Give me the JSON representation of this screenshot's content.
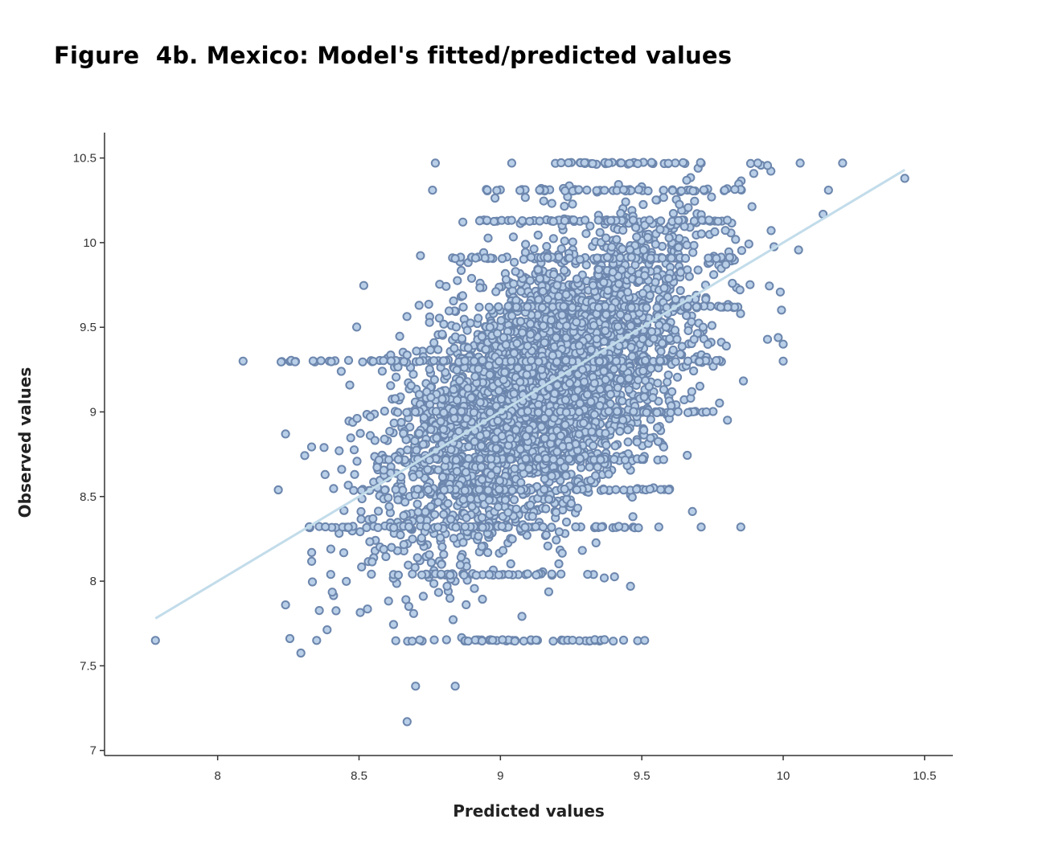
{
  "figure_title": "Figure  4b. Mexico: Model's fitted/predicted values",
  "colors": {
    "point_fill": "#b9cfe8",
    "point_stroke": "#6c86ad",
    "fit_line": "#c2dcea",
    "axis": "#333333"
  },
  "chart_data": {
    "type": "scatter",
    "title": "Figure  4b. Mexico: Model's fitted/predicted values",
    "xlabel": "Predicted values",
    "ylabel": "Observed values",
    "xlim": [
      7.6,
      10.6
    ],
    "ylim": [
      6.97,
      10.65
    ],
    "x_ticks": [
      8,
      8.5,
      9,
      9.5,
      10,
      10.5
    ],
    "x_tick_labels": [
      "8",
      "8.5",
      "9",
      "9.5",
      "10",
      "10.5"
    ],
    "y_ticks": [
      7,
      7.5,
      8,
      8.5,
      9,
      9.5,
      10,
      10.5
    ],
    "y_tick_labels": [
      "7",
      "7.5",
      "8",
      "8.5",
      "9",
      "9.5",
      "10",
      "10.5"
    ],
    "grid": false,
    "legend": "none",
    "fit_line": {
      "x": [
        7.78,
        10.43
      ],
      "y": [
        7.78,
        10.43
      ]
    },
    "point_count_description": "about 5000 observations clustered around predicted 8.6-9.8",
    "sample_points": [
      [
        7.78,
        7.65
      ],
      [
        8.09,
        9.3
      ],
      [
        8.24,
        8.87
      ],
      [
        8.24,
        7.86
      ],
      [
        8.35,
        7.65
      ],
      [
        8.38,
        8.63
      ],
      [
        8.4,
        8.04
      ],
      [
        8.67,
        7.17
      ],
      [
        8.7,
        7.38
      ],
      [
        8.84,
        7.38
      ],
      [
        8.77,
        10.47
      ],
      [
        8.76,
        10.31
      ],
      [
        9.04,
        10.47
      ],
      [
        9.91,
        10.47
      ],
      [
        10.06,
        10.47
      ],
      [
        10.21,
        10.47
      ],
      [
        10.43,
        10.38
      ],
      [
        10.16,
        10.31
      ],
      [
        10.0,
        9.4
      ],
      [
        10.0,
        9.3
      ],
      [
        9.85,
        8.32
      ],
      [
        9.71,
        8.32
      ],
      [
        9.56,
        8.32
      ],
      [
        9.51,
        7.65
      ],
      [
        9.46,
        7.97
      ]
    ],
    "horizontal_bands": [
      {
        "y": 10.47,
        "x_from": 9.15,
        "x_to": 9.75
      },
      {
        "y": 10.31,
        "x_from": 8.92,
        "x_to": 9.9
      },
      {
        "y": 10.13,
        "x_from": 8.92,
        "x_to": 9.85
      },
      {
        "y": 9.91,
        "x_from": 8.82,
        "x_to": 9.85
      },
      {
        "y": 9.62,
        "x_from": 8.8,
        "x_to": 9.9
      },
      {
        "y": 9.3,
        "x_from": 8.2,
        "x_to": 9.8
      },
      {
        "y": 9.0,
        "x_from": 8.62,
        "x_to": 9.78
      },
      {
        "y": 8.72,
        "x_from": 8.55,
        "x_to": 9.6
      },
      {
        "y": 8.54,
        "x_from": 8.47,
        "x_to": 9.6
      },
      {
        "y": 8.32,
        "x_from": 8.32,
        "x_to": 9.5
      },
      {
        "y": 8.04,
        "x_from": 8.62,
        "x_to": 9.35
      },
      {
        "y": 7.65,
        "x_from": 8.62,
        "x_to": 9.5
      }
    ]
  }
}
